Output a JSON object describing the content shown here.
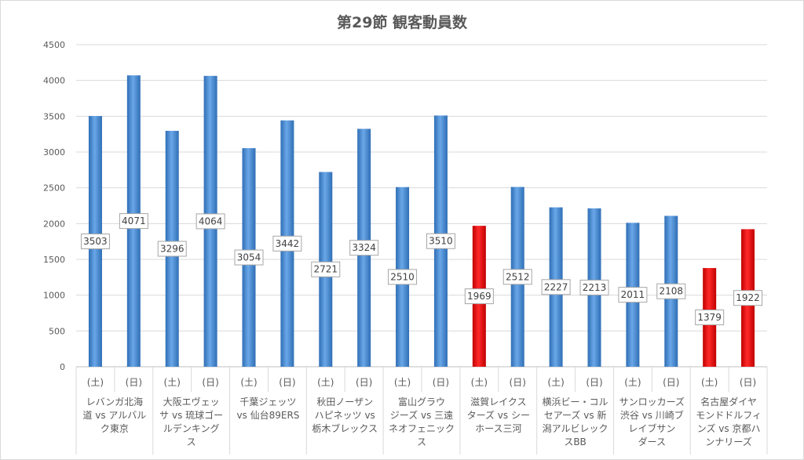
{
  "chart_data": {
    "type": "bar",
    "title": "第29節 観客動員数",
    "xlabel": "",
    "ylabel": "",
    "ylim": [
      0,
      4500
    ],
    "yticks": [
      0,
      500,
      1000,
      1500,
      2000,
      2500,
      3000,
      3500,
      4000,
      4500
    ],
    "grid": true,
    "legend": "none",
    "colors": {
      "blue": "#4f8fd6",
      "red": "#ff0000"
    },
    "games": [
      {
        "matchup_lines": [
          "レバンガ北海",
          "道 vs アルバル",
          "ク東京"
        ],
        "days": [
          {
            "day": "(土)",
            "value": 3503,
            "color": "blue"
          },
          {
            "day": "(日)",
            "value": 4071,
            "color": "blue"
          }
        ]
      },
      {
        "matchup_lines": [
          "大阪エヴェッ",
          "サ vs 琉球ゴー",
          "ルデンキング",
          "ス"
        ],
        "days": [
          {
            "day": "(土)",
            "value": 3296,
            "color": "blue"
          },
          {
            "day": "(日)",
            "value": 4064,
            "color": "blue"
          }
        ]
      },
      {
        "matchup_lines": [
          "千葉ジェッツ",
          "vs 仙台89ERS"
        ],
        "days": [
          {
            "day": "(土)",
            "value": 3054,
            "color": "blue"
          },
          {
            "day": "(日)",
            "value": 3442,
            "color": "blue"
          }
        ]
      },
      {
        "matchup_lines": [
          "秋田ノーザン",
          "ハピネッツ vs",
          "栃木ブレックス"
        ],
        "days": [
          {
            "day": "(土)",
            "value": 2721,
            "color": "blue"
          },
          {
            "day": "(日)",
            "value": 3324,
            "color": "blue"
          }
        ]
      },
      {
        "matchup_lines": [
          "富山グラウ",
          "ジーズ vs 三遠",
          "ネオフェニック",
          "ス"
        ],
        "days": [
          {
            "day": "(土)",
            "value": 2510,
            "color": "blue"
          },
          {
            "day": "(日)",
            "value": 3510,
            "color": "blue"
          }
        ]
      },
      {
        "matchup_lines": [
          "滋賀レイクス",
          "ターズ vs シー",
          "ホース三河"
        ],
        "days": [
          {
            "day": "(土)",
            "value": 1969,
            "color": "red"
          },
          {
            "day": "(日)",
            "value": 2512,
            "color": "blue"
          }
        ]
      },
      {
        "matchup_lines": [
          "横浜ビー・コル",
          "セアーズ vs 新",
          "潟アルビレック",
          "スBB"
        ],
        "days": [
          {
            "day": "(土)",
            "value": 2227,
            "color": "blue"
          },
          {
            "day": "(日)",
            "value": 2213,
            "color": "blue"
          }
        ]
      },
      {
        "matchup_lines": [
          "サンロッカーズ",
          "渋谷 vs 川崎ブ",
          "レイブサン",
          "ダース"
        ],
        "days": [
          {
            "day": "(土)",
            "value": 2011,
            "color": "blue"
          },
          {
            "day": "(日)",
            "value": 2108,
            "color": "blue"
          }
        ]
      },
      {
        "matchup_lines": [
          "名古屋ダイヤ",
          "モンドドルフィ",
          "ンズ vs 京都ハ",
          "ンナリーズ"
        ],
        "days": [
          {
            "day": "(土)",
            "value": 1379,
            "color": "red"
          },
          {
            "day": "(日)",
            "value": 1922,
            "color": "red"
          }
        ]
      }
    ]
  }
}
